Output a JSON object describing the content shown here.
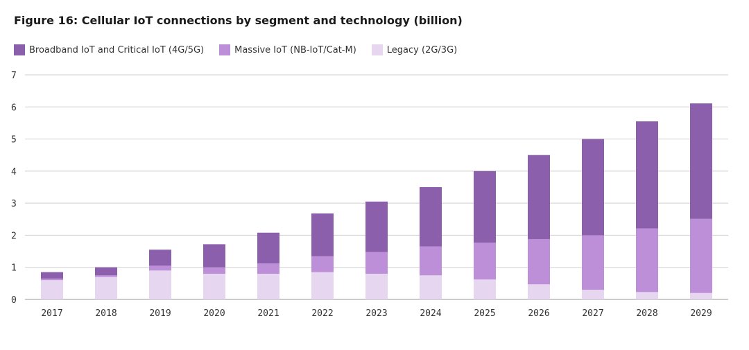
{
  "chart_data": {
    "type": "bar",
    "stacked": true,
    "title": "Figure 16: Cellular IoT connections by segment and technology (billion)",
    "xlabel": "",
    "ylabel": "",
    "ylim": [
      0,
      7
    ],
    "yticks": [
      0,
      1,
      2,
      3,
      4,
      5,
      6,
      7
    ],
    "grid": true,
    "legend_position": "top-left",
    "categories": [
      "2017",
      "2018",
      "2019",
      "2020",
      "2021",
      "2022",
      "2023",
      "2024",
      "2025",
      "2026",
      "2027",
      "2028",
      "2029"
    ],
    "series": [
      {
        "name": "Legacy (2G/3G)",
        "color": "#e6d6ef",
        "values": [
          0.6,
          0.7,
          0.9,
          0.8,
          0.8,
          0.85,
          0.8,
          0.75,
          0.62,
          0.47,
          0.3,
          0.23,
          0.2
        ]
      },
      {
        "name": "Massive IoT (NB-IoT/Cat-M)",
        "color": "#bd8fd9",
        "values": [
          0.05,
          0.05,
          0.15,
          0.2,
          0.32,
          0.5,
          0.68,
          0.9,
          1.15,
          1.41,
          1.7,
          1.98,
          2.31
        ]
      },
      {
        "name": "Broadband IoT and Critical IoT (4G/5G)",
        "color": "#8c5fac",
        "values": [
          0.2,
          0.25,
          0.5,
          0.72,
          0.96,
          1.33,
          1.57,
          1.85,
          2.23,
          2.62,
          3.0,
          3.34,
          3.6
        ]
      }
    ]
  },
  "legend_order": [
    "Broadband IoT and Critical IoT (4G/5G)",
    "Massive IoT (NB-IoT/Cat-M)",
    "Legacy (2G/3G)"
  ]
}
